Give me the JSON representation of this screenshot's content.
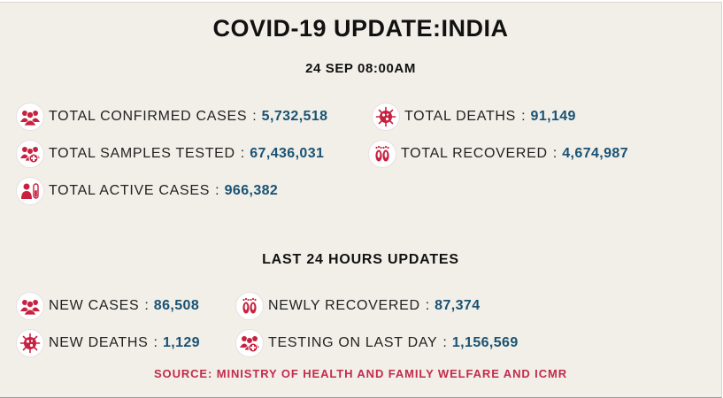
{
  "header": {
    "title": "COVID-19 UPDATE:INDIA",
    "date": "24 SEP 08:00AM"
  },
  "totals": {
    "confirmed": {
      "label": "TOTAL CONFIRMED CASES",
      "value": "5,732,518",
      "icon": "people-group-icon"
    },
    "deaths": {
      "label": "TOTAL DEATHS",
      "value": "91,149",
      "icon": "virus-icon"
    },
    "samples": {
      "label": "TOTAL SAMPLES TESTED",
      "value": "67,436,031",
      "icon": "people-medical-cross-icon"
    },
    "recovered": {
      "label": "TOTAL RECOVERED",
      "value": "4,674,987",
      "icon": "footprints-icon"
    },
    "active": {
      "label": "TOTAL ACTIVE CASES",
      "value": "966,382",
      "icon": "person-test-tube-icon"
    }
  },
  "last24": {
    "heading": "LAST 24 HOURS UPDATES",
    "new_cases": {
      "label": "NEW CASES",
      "value": "86,508",
      "icon": "people-group-icon"
    },
    "newly_recovered": {
      "label": "NEWLY RECOVERED",
      "value": "87,374",
      "icon": "footprints-icon"
    },
    "new_deaths": {
      "label": "NEW DEATHS",
      "value": "1,129",
      "icon": "virus-icon"
    },
    "testing_last_day": {
      "label": "TESTING ON LAST DAY",
      "value": "1,156,569",
      "icon": "people-medical-cross-icon"
    }
  },
  "source": "SOURCE: MINISTRY OF HEALTH AND FAMILY WELFARE AND ICMR",
  "colors": {
    "background": "#f1efe8",
    "icon": "#c8213f",
    "value": "#1a5273",
    "source": "#c42a4c"
  }
}
